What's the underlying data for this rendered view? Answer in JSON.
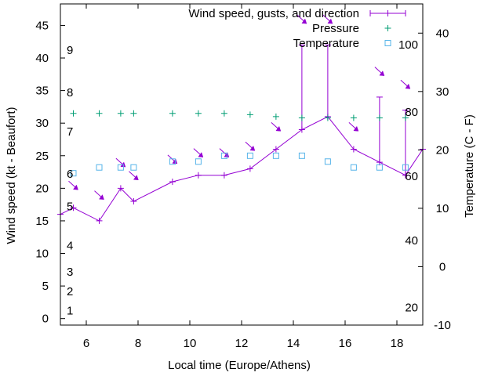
{
  "chart_data": {
    "type": "line",
    "xlabel": "Local time (Europe/Athens)",
    "ylabel": "Wind speed (kt - Beaufort)",
    "y2label": "Temperature (C - F)",
    "xlim": [
      5,
      19
    ],
    "ylim": [
      -1,
      48.3
    ],
    "y2lim": [
      -10,
      45
    ],
    "x_ticks": [
      6,
      8,
      10,
      12,
      14,
      16,
      18
    ],
    "y_ticks": [
      0,
      5,
      10,
      15,
      20,
      25,
      30,
      35,
      40,
      45
    ],
    "y2_ticks": [
      -10,
      0,
      10,
      20,
      30,
      40
    ],
    "beaufort_scale": [
      {
        "label": "1",
        "y": 1.2
      },
      {
        "label": "2",
        "y": 4.2
      },
      {
        "label": "3",
        "y": 7.2
      },
      {
        "label": "4",
        "y": 11.2
      },
      {
        "label": "5",
        "y": 17.2
      },
      {
        "label": "6",
        "y": 22.2
      },
      {
        "label": "7",
        "y": 28.7
      },
      {
        "label": "8",
        "y": 34.7
      },
      {
        "label": "9",
        "y": 41.2
      }
    ],
    "fahrenheit_scale": [
      {
        "label": "20",
        "temp": -7
      },
      {
        "label": "40",
        "temp": 4.5
      },
      {
        "label": "60",
        "temp": 15.5
      },
      {
        "label": "80",
        "temp": 26.5
      },
      {
        "label": "100",
        "temp": 38
      }
    ],
    "legend": {
      "placement": "top-right",
      "entries": [
        "Wind speed, gusts, and direction",
        "Pressure",
        "Temperature"
      ]
    },
    "series": [
      {
        "name": "Wind speed, gusts, and direction",
        "color": "#9400d3",
        "x": [
          5.0,
          5.5,
          6.5,
          7.33,
          7.83,
          9.33,
          10.33,
          11.33,
          12.33,
          13.33,
          14.33,
          15.33,
          16.33,
          17.33,
          18.33,
          19.0
        ],
        "y": [
          16,
          17,
          15,
          20,
          18,
          21,
          22,
          22,
          23,
          26,
          29,
          31,
          26,
          24,
          22,
          26
        ],
        "gusts": [
          {
            "x": 14.33,
            "y": 42
          },
          {
            "x": 15.33,
            "y": 42
          },
          {
            "x": 17.33,
            "y": 34
          },
          {
            "x": 18.33,
            "y": 32
          }
        ],
        "direction_arrows": [
          {
            "x": 5.5,
            "y": 20.5
          },
          {
            "x": 6.5,
            "y": 19
          },
          {
            "x": 7.33,
            "y": 24
          },
          {
            "x": 7.83,
            "y": 22
          },
          {
            "x": 9.33,
            "y": 24.5
          },
          {
            "x": 10.33,
            "y": 25.5
          },
          {
            "x": 11.33,
            "y": 25.5
          },
          {
            "x": 12.33,
            "y": 26.5
          },
          {
            "x": 13.33,
            "y": 29.5
          },
          {
            "x": 14.33,
            "y": 46
          },
          {
            "x": 15.33,
            "y": 46
          },
          {
            "x": 16.33,
            "y": 29.5
          },
          {
            "x": 17.33,
            "y": 38
          },
          {
            "x": 18.33,
            "y": 36
          }
        ]
      },
      {
        "name": "Pressure",
        "color": "#009e73",
        "marker": "plus",
        "x": [
          5.5,
          6.5,
          7.33,
          7.83,
          9.33,
          10.33,
          11.33,
          12.33,
          13.33,
          14.33,
          15.33,
          16.33,
          17.33,
          18.33
        ],
        "y": [
          31.5,
          31.5,
          31.5,
          31.5,
          31.5,
          31.5,
          31.5,
          31.3,
          31.0,
          30.8,
          30.8,
          30.8,
          30.8,
          30.8
        ]
      },
      {
        "name": "Temperature",
        "color": "#56b4e9",
        "marker": "square",
        "axis": "y2",
        "x": [
          5.5,
          6.5,
          7.33,
          7.83,
          9.33,
          10.33,
          11.33,
          12.33,
          13.33,
          14.33,
          15.33,
          16.33,
          17.33,
          18.33
        ],
        "y": [
          16,
          17,
          17,
          17,
          18,
          18,
          19,
          19,
          19,
          19,
          18,
          17,
          17,
          17
        ]
      }
    ]
  }
}
